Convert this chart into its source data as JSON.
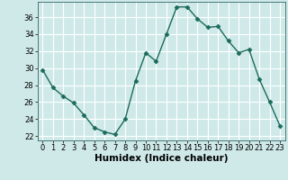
{
  "x": [
    0,
    1,
    2,
    3,
    4,
    5,
    6,
    7,
    8,
    9,
    10,
    11,
    12,
    13,
    14,
    15,
    16,
    17,
    18,
    19,
    20,
    21,
    22,
    23
  ],
  "y": [
    29.8,
    27.7,
    26.7,
    25.9,
    24.5,
    23.0,
    22.5,
    22.2,
    24.0,
    28.5,
    31.8,
    30.8,
    34.0,
    37.2,
    37.2,
    35.8,
    34.8,
    34.9,
    33.2,
    31.8,
    32.2,
    28.7,
    26.0,
    23.2
  ],
  "line_color": "#1a6b5a",
  "marker": "D",
  "markersize": 2.5,
  "linewidth": 1.0,
  "bg_color": "#cfe9e9",
  "grid_color": "#ffffff",
  "xlabel": "Humidex (Indice chaleur)",
  "xlim": [
    -0.5,
    23.5
  ],
  "ylim": [
    21.5,
    37.8
  ],
  "yticks": [
    22,
    24,
    26,
    28,
    30,
    32,
    34,
    36
  ],
  "xticks": [
    0,
    1,
    2,
    3,
    4,
    5,
    6,
    7,
    8,
    9,
    10,
    11,
    12,
    13,
    14,
    15,
    16,
    17,
    18,
    19,
    20,
    21,
    22,
    23
  ],
  "tick_fontsize": 6,
  "xlabel_fontsize": 7.5
}
